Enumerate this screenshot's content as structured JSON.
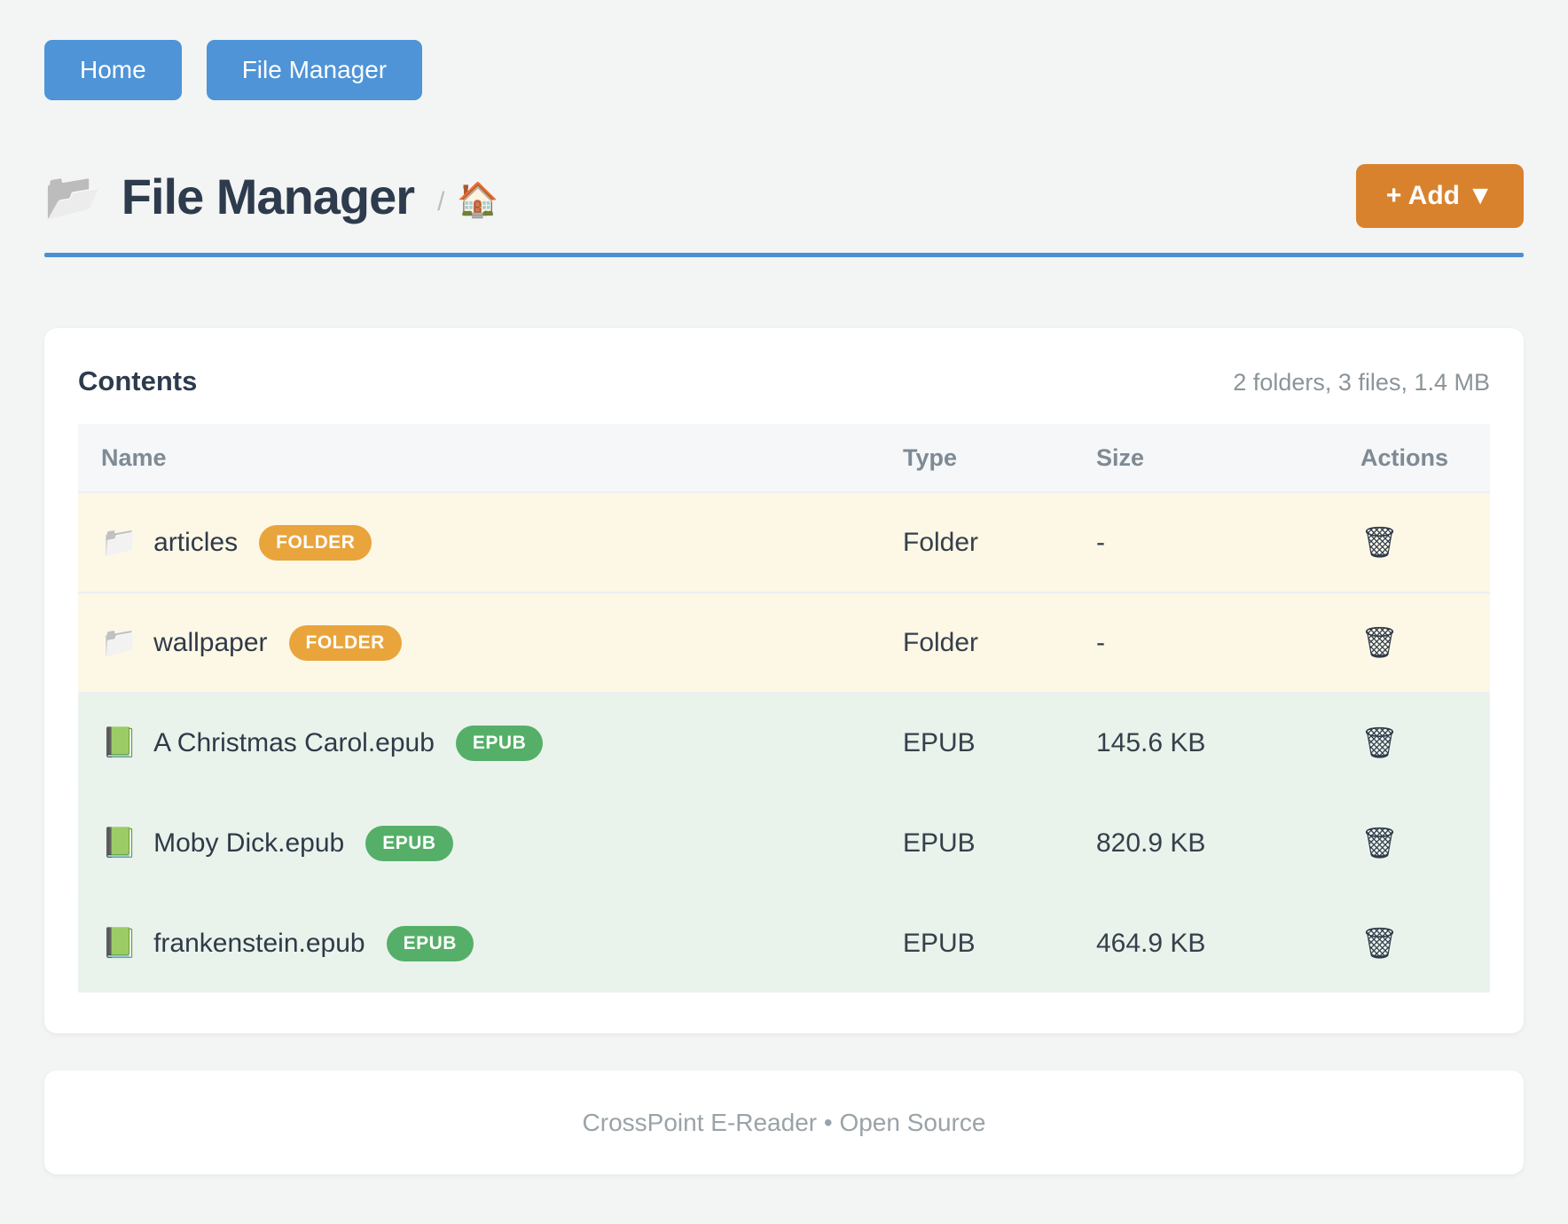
{
  "icons": {
    "title_folder": "📂",
    "home": "🏠",
    "folder": "📁",
    "book": "📗",
    "trash": "🗑"
  },
  "nav": {
    "home_label": "Home",
    "file_manager_label": "File Manager"
  },
  "header": {
    "title": "File Manager",
    "breadcrumb_separator": "/",
    "add_button_label": "+ Add ▼"
  },
  "content": {
    "heading": "Contents",
    "summary": "2 folders, 3 files, 1.4 MB",
    "table": {
      "columns": [
        "Name",
        "Type",
        "Size",
        "Actions"
      ],
      "rows": [
        {
          "name": "articles",
          "badge": "FOLDER",
          "type": "Folder",
          "size": "-"
        },
        {
          "name": "wallpaper",
          "badge": "FOLDER",
          "type": "Folder",
          "size": "-"
        },
        {
          "name": "A Christmas Carol.epub",
          "badge": "EPUB",
          "type": "EPUB",
          "size": "145.6 KB"
        },
        {
          "name": "Moby Dick.epub",
          "badge": "EPUB",
          "type": "EPUB",
          "size": "820.9 KB"
        },
        {
          "name": "frankenstein.epub",
          "badge": "EPUB",
          "type": "EPUB",
          "size": "464.9 KB"
        }
      ]
    }
  },
  "footer": {
    "text": "CrossPoint E-Reader • Open Source"
  },
  "colors": {
    "primary_blue": "#4e94d6",
    "rule_blue": "#4a90d3",
    "accent_orange": "#d9822e",
    "folder_badge": "#e9a43c",
    "epub_badge": "#55af68",
    "folder_row_bg": "#fdf7e6",
    "epub_row_bg": "#e9f3ec",
    "title_navy": "#2d3b4d"
  }
}
